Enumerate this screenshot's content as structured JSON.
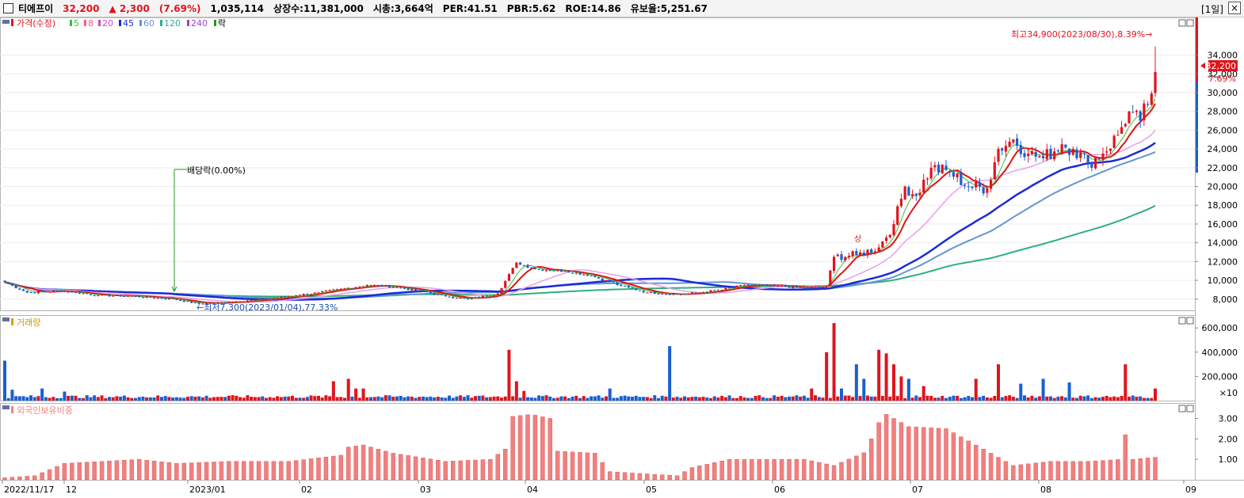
{
  "header": {
    "name": "티에프이",
    "price": "32,200",
    "change": "▲ 2,300",
    "change_pct": "(7.69%)",
    "volume": "1,035,114",
    "listed": "상장수:11,381,000",
    "mktcap": "시총:3,664억",
    "per": "PER:41.51",
    "pbr": "PBR:5.62",
    "roe": "ROE:14.86",
    "float": "유보율:5,251.67",
    "period": "[1일]",
    "close": "×"
  },
  "legend": {
    "price_label": "가격(수정)",
    "ma_labels": [
      "5",
      "8",
      "20",
      "45",
      "60",
      "120",
      "240"
    ],
    "lock_label": "락",
    "volume_label": "거래량",
    "foreign_label": "외국인보유비중"
  },
  "colors": {
    "up": "#e0141e",
    "down": "#1a5fd0",
    "ma5": "#3cbe3c",
    "ma8": "#ff5a82",
    "ma20": "#d040d0",
    "ma45": "#1b2bd8",
    "ma60": "#6496d2",
    "ma120": "#28b096",
    "ma240": "#a040d0",
    "ma_red": "#e01414",
    "ma_pink": "#e6a0e6",
    "ma_green": "#2db07a",
    "foreign": "#f08080",
    "dividend": "#1e9a1e"
  },
  "annotations": {
    "high": "최고34,900(2023/08/30),8.39%→",
    "low": "←최저7,300(2023/01/04),77.33%",
    "dividend": "배당락(0.00%)",
    "upper_limit": "상",
    "last_price": "32,200",
    "last_pct": "7.69%"
  },
  "chart_data": [
    {
      "type": "candlestick",
      "title": "가격(수정)",
      "ylim": [
        6800,
        37000
      ],
      "y_ticks": [
        "34,000",
        "32,000",
        "30,000",
        "28,000",
        "26,000",
        "24,000",
        "22,000",
        "20,000",
        "18,000",
        "16,000",
        "14,000",
        "12,000",
        "10,000",
        "8,000"
      ],
      "x_labels": [
        "2022/11/17",
        "12",
        "2023/01",
        "02",
        "03",
        "04",
        "05",
        "06",
        "07",
        "08",
        "09"
      ],
      "anchors": [
        {
          "t": 0,
          "c": 9800
        },
        {
          "t": 6,
          "c": 8700
        },
        {
          "t": 15,
          "c": 8900
        },
        {
          "t": 25,
          "c": 8400
        },
        {
          "t": 35,
          "c": 8300
        },
        {
          "t": 45,
          "c": 8000
        },
        {
          "t": 52,
          "c": 7500
        },
        {
          "t": 60,
          "c": 7700
        },
        {
          "t": 70,
          "c": 8000
        },
        {
          "t": 78,
          "c": 8400
        },
        {
          "t": 84,
          "c": 8700
        },
        {
          "t": 92,
          "c": 9200
        },
        {
          "t": 97,
          "c": 9500
        },
        {
          "t": 104,
          "c": 9300
        },
        {
          "t": 112,
          "c": 8800
        },
        {
          "t": 118,
          "c": 8300
        },
        {
          "t": 124,
          "c": 8000
        },
        {
          "t": 132,
          "c": 8600
        },
        {
          "t": 137,
          "c": 11900
        },
        {
          "t": 142,
          "c": 11200
        },
        {
          "t": 150,
          "c": 11000
        },
        {
          "t": 157,
          "c": 10500
        },
        {
          "t": 165,
          "c": 9400
        },
        {
          "t": 172,
          "c": 8700
        },
        {
          "t": 180,
          "c": 8500
        },
        {
          "t": 186,
          "c": 8700
        },
        {
          "t": 192,
          "c": 9000
        },
        {
          "t": 198,
          "c": 9500
        },
        {
          "t": 206,
          "c": 9400
        },
        {
          "t": 214,
          "c": 9200
        },
        {
          "t": 220,
          "c": 9400
        },
        {
          "t": 222,
          "c": 12500
        },
        {
          "t": 228,
          "c": 12700
        },
        {
          "t": 234,
          "c": 13500
        },
        {
          "t": 238,
          "c": 16000
        },
        {
          "t": 241,
          "c": 20000
        },
        {
          "t": 244,
          "c": 19000
        },
        {
          "t": 248,
          "c": 22000
        },
        {
          "t": 253,
          "c": 21500
        },
        {
          "t": 258,
          "c": 20000
        },
        {
          "t": 263,
          "c": 19800
        },
        {
          "t": 266,
          "c": 24000
        },
        {
          "t": 270,
          "c": 25000
        },
        {
          "t": 274,
          "c": 23500
        },
        {
          "t": 278,
          "c": 23000
        },
        {
          "t": 283,
          "c": 24500
        },
        {
          "t": 286,
          "c": 24000
        },
        {
          "t": 290,
          "c": 22500
        },
        {
          "t": 294,
          "c": 23500
        },
        {
          "t": 298,
          "c": 25500
        },
        {
          "t": 301,
          "c": 28000
        },
        {
          "t": 304,
          "c": 27000
        },
        {
          "t": 307,
          "c": 29900
        },
        {
          "t": 308,
          "c": 32200
        }
      ],
      "extremes": {
        "high": 34900,
        "low": 7300
      },
      "last": {
        "close": 32200,
        "change_pct": 7.69
      }
    },
    {
      "type": "bar",
      "title": "거래량",
      "ylim": [
        0,
        680000
      ],
      "y_ticks": [
        "600,000",
        "400,000",
        "200,000"
      ],
      "unit": "×10",
      "spikes": [
        {
          "t": 0,
          "v": 330000
        },
        {
          "t": 2,
          "v": 90000
        },
        {
          "t": 10,
          "v": 100000
        },
        {
          "t": 16,
          "v": 75000
        },
        {
          "t": 88,
          "v": 160000
        },
        {
          "t": 92,
          "v": 180000
        },
        {
          "t": 94,
          "v": 100000
        },
        {
          "t": 96,
          "v": 100000
        },
        {
          "t": 135,
          "v": 420000
        },
        {
          "t": 137,
          "v": 160000
        },
        {
          "t": 139,
          "v": 80000
        },
        {
          "t": 162,
          "v": 100000
        },
        {
          "t": 178,
          "v": 450000
        },
        {
          "t": 216,
          "v": 100000
        },
        {
          "t": 220,
          "v": 400000
        },
        {
          "t": 222,
          "v": 640000
        },
        {
          "t": 224,
          "v": 100000
        },
        {
          "t": 228,
          "v": 300000
        },
        {
          "t": 230,
          "v": 180000
        },
        {
          "t": 234,
          "v": 420000
        },
        {
          "t": 236,
          "v": 390000
        },
        {
          "t": 238,
          "v": 300000
        },
        {
          "t": 240,
          "v": 200000
        },
        {
          "t": 242,
          "v": 180000
        },
        {
          "t": 246,
          "v": 120000
        },
        {
          "t": 260,
          "v": 180000
        },
        {
          "t": 266,
          "v": 300000
        },
        {
          "t": 272,
          "v": 140000
        },
        {
          "t": 278,
          "v": 180000
        },
        {
          "t": 285,
          "v": 150000
        },
        {
          "t": 300,
          "v": 300000
        },
        {
          "t": 308,
          "v": 100000
        }
      ]
    },
    {
      "type": "bar",
      "title": "외국인보유비중",
      "ylim": [
        0,
        3.6
      ],
      "y_ticks": [
        "3.00",
        "2.00",
        "1.00"
      ],
      "anchors": [
        {
          "t": 0,
          "v": 0.1
        },
        {
          "t": 8,
          "v": 0.2
        },
        {
          "t": 16,
          "v": 0.8
        },
        {
          "t": 26,
          "v": 0.9
        },
        {
          "t": 36,
          "v": 1.0
        },
        {
          "t": 46,
          "v": 0.8
        },
        {
          "t": 60,
          "v": 0.9
        },
        {
          "t": 76,
          "v": 0.9
        },
        {
          "t": 90,
          "v": 1.2
        },
        {
          "t": 92,
          "v": 1.6
        },
        {
          "t": 96,
          "v": 1.7
        },
        {
          "t": 104,
          "v": 1.3
        },
        {
          "t": 118,
          "v": 0.9
        },
        {
          "t": 130,
          "v": 1.0
        },
        {
          "t": 134,
          "v": 1.5
        },
        {
          "t": 136,
          "v": 3.1
        },
        {
          "t": 141,
          "v": 3.2
        },
        {
          "t": 146,
          "v": 3.0
        },
        {
          "t": 148,
          "v": 1.4
        },
        {
          "t": 158,
          "v": 1.3
        },
        {
          "t": 162,
          "v": 0.4
        },
        {
          "t": 180,
          "v": 0.2
        },
        {
          "t": 184,
          "v": 0.6
        },
        {
          "t": 194,
          "v": 1.0
        },
        {
          "t": 214,
          "v": 1.0
        },
        {
          "t": 222,
          "v": 0.7
        },
        {
          "t": 231,
          "v": 1.4
        },
        {
          "t": 233,
          "v": 2.6
        },
        {
          "t": 236,
          "v": 3.2
        },
        {
          "t": 242,
          "v": 2.6
        },
        {
          "t": 252,
          "v": 2.5
        },
        {
          "t": 264,
          "v": 1.3
        },
        {
          "t": 270,
          "v": 0.7
        },
        {
          "t": 280,
          "v": 0.9
        },
        {
          "t": 290,
          "v": 0.9
        },
        {
          "t": 299,
          "v": 1.0
        },
        {
          "t": 300,
          "v": 2.2
        },
        {
          "t": 302,
          "v": 1.0
        },
        {
          "t": 308,
          "v": 1.1
        }
      ]
    }
  ]
}
